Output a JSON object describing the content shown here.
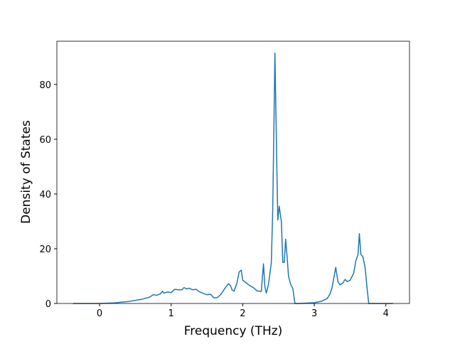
{
  "chart_data": {
    "type": "line",
    "x_label": "Frequency (THz)",
    "y_label": "Density of States",
    "x": [
      -0.37,
      0,
      0.2,
      0.4,
      0.6,
      0.7,
      0.75,
      0.8,
      0.85,
      0.88,
      0.9,
      0.95,
      1.0,
      1.05,
      1.1,
      1.15,
      1.18,
      1.22,
      1.25,
      1.3,
      1.35,
      1.4,
      1.5,
      1.55,
      1.6,
      1.65,
      1.7,
      1.75,
      1.8,
      1.83,
      1.85,
      1.88,
      1.92,
      1.95,
      1.98,
      2.0,
      2.05,
      2.1,
      2.15,
      2.2,
      2.26,
      2.29,
      2.31,
      2.33,
      2.36,
      2.4,
      2.42,
      2.45,
      2.47,
      2.49,
      2.51,
      2.54,
      2.56,
      2.58,
      2.6,
      2.62,
      2.64,
      2.67,
      2.7,
      2.73,
      2.8,
      3.0,
      3.1,
      3.18,
      3.22,
      3.25,
      3.3,
      3.33,
      3.36,
      3.4,
      3.43,
      3.46,
      3.5,
      3.55,
      3.58,
      3.61,
      3.63,
      3.65,
      3.68,
      3.71,
      3.74,
      3.76,
      3.9,
      4.1
    ],
    "series": [
      {
        "color": "#1f77b4",
        "values": [
          0,
          0,
          0.2,
          0.7,
          1.6,
          2.3,
          3.2,
          3.0,
          3.5,
          4.5,
          3.8,
          4.2,
          4.0,
          5.2,
          5.0,
          5.0,
          5.8,
          5.3,
          5.6,
          5.0,
          5.2,
          4.2,
          3.2,
          3.4,
          2.0,
          2.2,
          3.5,
          5.5,
          7.2,
          6.5,
          5.0,
          4.5,
          7.5,
          11.5,
          12.2,
          8.5,
          7.5,
          6.5,
          5.8,
          4.6,
          4.4,
          14.5,
          6,
          3.8,
          7,
          15,
          35,
          91.5,
          60,
          30.5,
          35.5,
          30,
          15,
          15,
          23.5,
          17,
          10,
          7,
          5.5,
          0,
          0,
          0.3,
          0.8,
          1.8,
          3.5,
          6,
          13.2,
          8,
          6.8,
          7.5,
          8.8,
          8.0,
          8.5,
          11,
          15.5,
          17.8,
          25.5,
          18,
          17,
          13,
          5,
          0,
          0,
          0
        ]
      }
    ],
    "xlim": [
      -0.596,
      4.33
    ],
    "ylim": [
      0,
      95.8
    ],
    "xticks": [
      0,
      1,
      2,
      3,
      4
    ],
    "yticks": [
      0,
      20,
      40,
      60,
      80
    ],
    "grid": false
  }
}
